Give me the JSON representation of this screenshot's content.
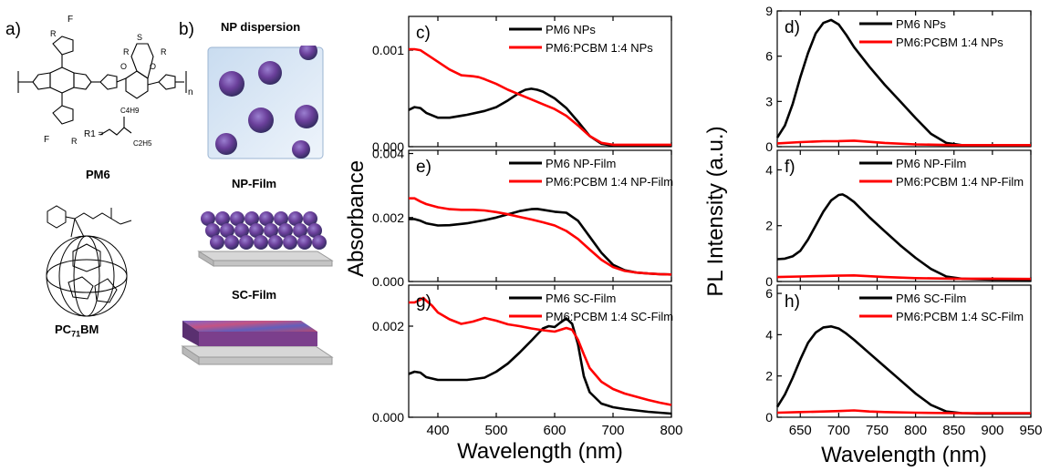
{
  "panels": {
    "a": "a)",
    "b": "b)"
  },
  "structures": {
    "pm6_label": "PM6",
    "pcbm_label": "PC71BM",
    "pcbm_label_main": "PC",
    "pcbm_label_sub": "71",
    "pcbm_label_end": "BM",
    "r1_text": "R",
    "r1_sub": "1",
    "r1_def": "R1 =",
    "substituent_upper": "C4H9",
    "substituent_lower": "C2H5",
    "fluorine": "F",
    "sulfur": "S",
    "oxygen": "O",
    "repeat_n": "n"
  },
  "scheme": {
    "np_dispersion": "NP dispersion",
    "np_film": "NP-Film",
    "sc_film": "SC-Film"
  },
  "colors": {
    "neat": "#000000",
    "blend": "#ff0000"
  },
  "chart_data": [
    {
      "id": "c",
      "panel_label": "c)",
      "type": "line",
      "xlim": [
        350,
        800
      ],
      "ylim": [
        0,
        0.00135
      ],
      "yticks": [
        0,
        0.001
      ],
      "ytick_labels": [
        "0.000",
        "0.001"
      ],
      "legend": "top-right",
      "series": [
        {
          "name": "PM6 NPs",
          "color": "#000000",
          "x": [
            350,
            360,
            370,
            380,
            400,
            420,
            450,
            480,
            500,
            520,
            540,
            550,
            560,
            570,
            580,
            600,
            620,
            640,
            660,
            680,
            700,
            720,
            740,
            760,
            780,
            800
          ],
          "y": [
            0.00038,
            0.00041,
            0.0004,
            0.00035,
            0.0003,
            0.0003,
            0.00033,
            0.00037,
            0.00041,
            0.00048,
            0.00056,
            0.00059,
            0.0006,
            0.00059,
            0.00057,
            0.0005,
            0.0004,
            0.00026,
            0.00011,
            3e-05,
            1e-05,
            1e-05,
            1e-05,
            1e-05,
            1e-05,
            1e-05
          ]
        },
        {
          "name": "PM6:PCBM 1:4 NPs",
          "color": "#ff0000",
          "x": [
            350,
            360,
            370,
            380,
            400,
            420,
            440,
            460,
            470,
            480,
            500,
            520,
            540,
            560,
            580,
            600,
            620,
            640,
            660,
            680,
            700,
            720,
            740,
            760,
            780,
            800
          ],
          "y": [
            0.00101,
            0.00101,
            0.001,
            0.00096,
            0.00088,
            0.0008,
            0.00074,
            0.00073,
            0.00072,
            0.0007,
            0.00065,
            0.00059,
            0.00054,
            0.00049,
            0.00044,
            0.00039,
            0.00032,
            0.00022,
            0.00011,
            4e-05,
            2e-05,
            2e-05,
            2e-05,
            2e-05,
            2e-05,
            2e-05
          ]
        }
      ]
    },
    {
      "id": "e",
      "panel_label": "e)",
      "type": "line",
      "xlim": [
        350,
        800
      ],
      "ylim": [
        0,
        0.0041
      ],
      "yticks": [
        0,
        0.002,
        0.004
      ],
      "ytick_labels": [
        "0.000",
        "0.002",
        "0.004"
      ],
      "legend": "top-right",
      "series": [
        {
          "name": "PM6 NP-Film",
          "color": "#000000",
          "x": [
            350,
            360,
            370,
            380,
            400,
            420,
            450,
            480,
            500,
            520,
            540,
            560,
            570,
            580,
            600,
            620,
            640,
            660,
            680,
            700,
            720,
            740,
            760,
            780,
            800
          ],
          "y": [
            0.00195,
            0.00195,
            0.0019,
            0.00182,
            0.00175,
            0.00176,
            0.00182,
            0.00192,
            0.002,
            0.0021,
            0.0022,
            0.00226,
            0.00227,
            0.00224,
            0.00218,
            0.00215,
            0.0019,
            0.0014,
            0.0009,
            0.00052,
            0.00035,
            0.00028,
            0.00025,
            0.00023,
            0.00022
          ]
        },
        {
          "name": "PM6:PCBM 1:4 NP-Film",
          "color": "#ff0000",
          "x": [
            350,
            360,
            370,
            380,
            400,
            420,
            440,
            460,
            480,
            500,
            520,
            540,
            560,
            580,
            600,
            620,
            640,
            660,
            680,
            700,
            720,
            740,
            760,
            780,
            800
          ],
          "y": [
            0.0026,
            0.0026,
            0.0025,
            0.00242,
            0.00232,
            0.00226,
            0.00224,
            0.00224,
            0.00222,
            0.00217,
            0.0021,
            0.00202,
            0.00194,
            0.00185,
            0.00175,
            0.00158,
            0.00133,
            0.001,
            0.00068,
            0.00045,
            0.00033,
            0.00028,
            0.00025,
            0.00023,
            0.00022
          ]
        }
      ]
    },
    {
      "id": "g",
      "panel_label": "g)",
      "type": "line",
      "xlim": [
        350,
        800
      ],
      "ylim": [
        0,
        0.0029
      ],
      "yticks": [
        0,
        0.002
      ],
      "ytick_labels": [
        "0.000",
        "0.002"
      ],
      "legend": "top-right",
      "series": [
        {
          "name": "PM6 SC-Film",
          "color": "#000000",
          "x": [
            350,
            360,
            370,
            380,
            400,
            420,
            450,
            480,
            500,
            520,
            540,
            560,
            580,
            590,
            600,
            610,
            620,
            630,
            640,
            650,
            660,
            680,
            700,
            720,
            740,
            760,
            780,
            800
          ],
          "y": [
            0.00095,
            0.001,
            0.00098,
            0.00088,
            0.00082,
            0.00082,
            0.00082,
            0.00087,
            0.001,
            0.00118,
            0.00142,
            0.00168,
            0.00195,
            0.002,
            0.00198,
            0.00208,
            0.00217,
            0.00205,
            0.0016,
            0.0009,
            0.00055,
            0.0003,
            0.00022,
            0.00018,
            0.00015,
            0.00012,
            0.0001,
            8e-05
          ]
        },
        {
          "name": "PM6:PCBM 1:4 SC-Film",
          "color": "#ff0000",
          "x": [
            350,
            360,
            370,
            375,
            380,
            390,
            400,
            420,
            440,
            460,
            480,
            500,
            520,
            540,
            560,
            580,
            600,
            620,
            630,
            640,
            650,
            660,
            680,
            700,
            720,
            740,
            760,
            780,
            800
          ],
          "y": [
            0.00252,
            0.00252,
            0.00258,
            0.00262,
            0.00256,
            0.00245,
            0.0023,
            0.00215,
            0.00205,
            0.0021,
            0.00218,
            0.00212,
            0.00204,
            0.002,
            0.00195,
            0.00191,
            0.00188,
            0.00196,
            0.00192,
            0.0017,
            0.00138,
            0.00108,
            0.00078,
            0.00062,
            0.00052,
            0.00045,
            0.00038,
            0.00032,
            0.00027
          ]
        }
      ]
    },
    {
      "id": "d",
      "panel_label": "d)",
      "type": "line",
      "xlim": [
        620,
        950
      ],
      "ylim": [
        0,
        9
      ],
      "yticks": [
        0,
        3,
        6,
        9
      ],
      "ytick_labels": [
        "0",
        "3",
        "6",
        "9"
      ],
      "legend": "top-right",
      "series": [
        {
          "name": "PM6 NPs",
          "color": "#000000",
          "x": [
            620,
            630,
            640,
            650,
            660,
            670,
            680,
            690,
            700,
            710,
            720,
            740,
            760,
            780,
            800,
            820,
            840,
            860,
            880,
            900,
            920,
            950
          ],
          "y": [
            0.6,
            1.4,
            2.8,
            4.6,
            6.2,
            7.5,
            8.2,
            8.4,
            8.1,
            7.4,
            6.6,
            5.3,
            4.1,
            3.0,
            1.9,
            0.85,
            0.25,
            0.1,
            0.08,
            0.07,
            0.07,
            0.06
          ]
        },
        {
          "name": "PM6:PCBM 1:4 NPs",
          "color": "#ff0000",
          "x": [
            620,
            650,
            680,
            700,
            720,
            740,
            760,
            800,
            850,
            900,
            950
          ],
          "y": [
            0.22,
            0.3,
            0.36,
            0.37,
            0.4,
            0.32,
            0.25,
            0.15,
            0.1,
            0.1,
            0.1
          ]
        }
      ]
    },
    {
      "id": "f",
      "panel_label": "f)",
      "type": "line",
      "xlim": [
        620,
        950
      ],
      "ylim": [
        0,
        4.7
      ],
      "yticks": [
        0,
        2,
        4
      ],
      "ytick_labels": [
        "0",
        "2",
        "4"
      ],
      "legend": "top-right",
      "series": [
        {
          "name": "PM6 NP-Film",
          "color": "#000000",
          "x": [
            620,
            630,
            640,
            650,
            660,
            670,
            680,
            690,
            700,
            705,
            710,
            720,
            740,
            760,
            780,
            800,
            820,
            840,
            860,
            880,
            900,
            950
          ],
          "y": [
            0.8,
            0.82,
            0.9,
            1.1,
            1.5,
            2.0,
            2.5,
            2.9,
            3.1,
            3.12,
            3.05,
            2.85,
            2.3,
            1.8,
            1.3,
            0.85,
            0.45,
            0.18,
            0.1,
            0.08,
            0.07,
            0.06
          ]
        },
        {
          "name": "PM6:PCBM 1:4 NP-Film",
          "color": "#ff0000",
          "x": [
            620,
            650,
            680,
            700,
            720,
            740,
            760,
            800,
            850,
            900,
            950
          ],
          "y": [
            0.16,
            0.18,
            0.2,
            0.21,
            0.22,
            0.19,
            0.16,
            0.12,
            0.1,
            0.1,
            0.09
          ]
        }
      ]
    },
    {
      "id": "h",
      "panel_label": "h)",
      "type": "line",
      "xlim": [
        620,
        950
      ],
      "ylim": [
        0,
        6.4
      ],
      "yticks": [
        0,
        2,
        4,
        6
      ],
      "ytick_labels": [
        "0",
        "2",
        "4",
        "6"
      ],
      "xticks": [
        650,
        700,
        750,
        800,
        850,
        900,
        950
      ],
      "legend": "top-right",
      "series": [
        {
          "name": "PM6 SC-Film",
          "color": "#000000",
          "x": [
            620,
            630,
            640,
            650,
            660,
            670,
            680,
            690,
            700,
            710,
            720,
            740,
            760,
            780,
            800,
            820,
            840,
            860,
            880,
            900,
            950
          ],
          "y": [
            0.5,
            1.1,
            1.9,
            2.8,
            3.6,
            4.1,
            4.35,
            4.4,
            4.3,
            4.05,
            3.75,
            3.1,
            2.45,
            1.8,
            1.15,
            0.6,
            0.28,
            0.2,
            0.18,
            0.18,
            0.18
          ]
        },
        {
          "name": "PM6:PCBM 1:4 SC-Film",
          "color": "#ff0000",
          "x": [
            620,
            650,
            680,
            700,
            720,
            740,
            760,
            800,
            850,
            900,
            950
          ],
          "y": [
            0.22,
            0.25,
            0.28,
            0.3,
            0.33,
            0.28,
            0.25,
            0.22,
            0.2,
            0.2,
            0.2
          ]
        }
      ]
    }
  ],
  "axes": {
    "abs_ylabel": "Absorbance",
    "abs_xlabel": "Wavelength (nm)",
    "abs_xticks": [
      400,
      500,
      600,
      700,
      800
    ],
    "pl_ylabel": "PL Intensity (a.u.)",
    "pl_xlabel": "Wavelength (nm)",
    "pl_xticks": [
      650,
      700,
      750,
      800,
      850,
      900,
      950
    ]
  }
}
